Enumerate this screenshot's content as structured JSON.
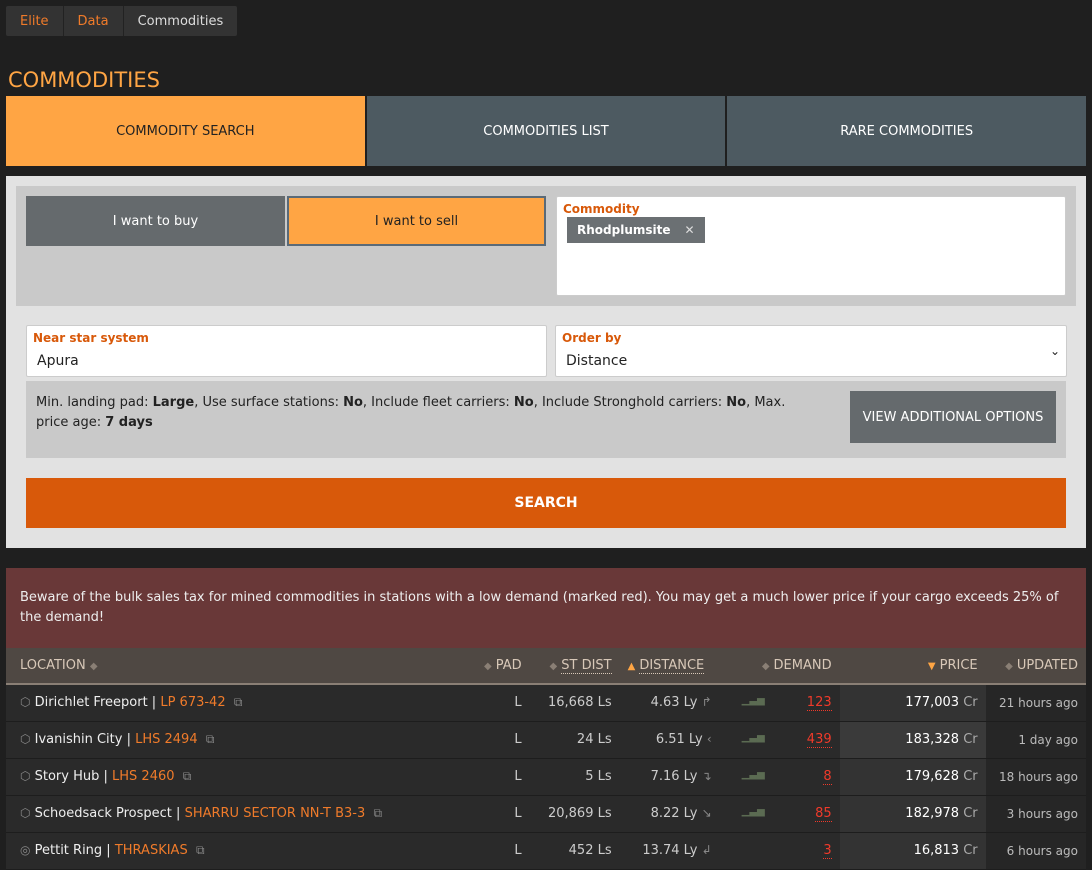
{
  "breadcrumb": [
    "Elite",
    "Data",
    "Commodities"
  ],
  "title": "COMMODITIES",
  "tabs": [
    {
      "label": "COMMODITY SEARCH",
      "active": true
    },
    {
      "label": "COMMODITIES LIST"
    },
    {
      "label": "RARE COMMODITIES"
    }
  ],
  "form": {
    "buy_label": "I want to buy",
    "sell_label": "I want to sell",
    "mode": "sell",
    "commodity_label": "Commodity",
    "commodity_chip": "Rhodplumsite",
    "near_label": "Near star system",
    "near_value": "Apura",
    "order_label": "Order by",
    "order_value": "Distance",
    "options_text": [
      "Min. landing pad: ",
      "Large",
      ", Use surface stations: ",
      "No",
      ", Include fleet carriers: ",
      "No",
      ", Include Stronghold carriers: ",
      "No",
      ", Max. price age: ",
      "7 days"
    ],
    "view_options": "VIEW ADDITIONAL OPTIONS",
    "search": "SEARCH"
  },
  "warning": "Beware of the bulk sales tax for mined commodities in stations with a low demand (marked red). You may get a much lower price if your cargo exceeds 25% of the demand!",
  "colors": {
    "accent": "#ffa544",
    "primary": "#d8590a",
    "warning_bg": "#693838"
  },
  "table": {
    "headers": [
      "LOCATION",
      "PAD",
      "ST DIST",
      "DISTANCE",
      "DEMAND",
      "PRICE",
      "UPDATED"
    ],
    "rows": [
      {
        "station": "Dirichlet Freeport",
        "system": "LP 673-42",
        "pad": "L",
        "st_dist": "16,668 Ls",
        "distance": "4.63 Ly",
        "demand": "123",
        "price": "177,003",
        "unit": "Cr",
        "updated": "21 hours ago"
      },
      {
        "station": "Ivanishin City",
        "system": "LHS 2494",
        "pad": "L",
        "st_dist": "24 Ls",
        "distance": "6.51 Ly",
        "demand": "439",
        "price": "183,328",
        "unit": "Cr",
        "updated": "1 day ago"
      },
      {
        "station": "Story Hub",
        "system": "LHS 2460",
        "pad": "L",
        "st_dist": "5 Ls",
        "distance": "7.16 Ly",
        "demand": "8",
        "price": "179,628",
        "unit": "Cr",
        "updated": "18 hours ago"
      },
      {
        "station": "Schoedsack Prospect",
        "system": "SHARRU SECTOR NN-T B3-3",
        "pad": "L",
        "st_dist": "20,869 Ls",
        "distance": "8.22 Ly",
        "demand": "85",
        "price": "182,978",
        "unit": "Cr",
        "updated": "3 hours ago"
      },
      {
        "station": "Pettit Ring",
        "system": "THRASKIAS",
        "pad": "L",
        "st_dist": "452 Ls",
        "distance": "13.74 Ly",
        "demand": "3",
        "price": "16,813",
        "unit": "Cr",
        "updated": "6 hours ago"
      }
    ]
  }
}
